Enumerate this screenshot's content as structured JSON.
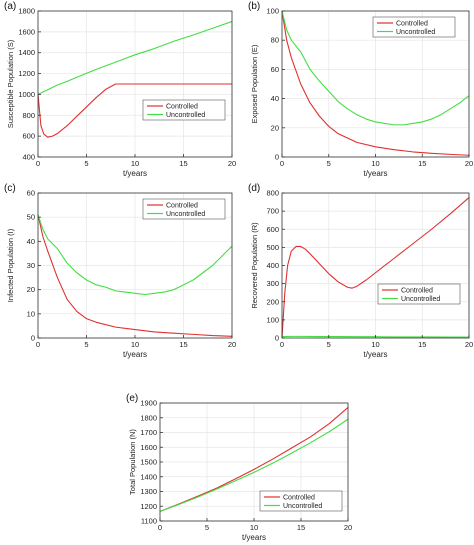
{
  "colors": {
    "controlled": "#e03030",
    "uncontrolled": "#44dd44",
    "axis": "#333333",
    "grid": "#e6e6e6"
  },
  "chart_data": [
    {
      "panel_label": "(a)",
      "type": "line",
      "xlabel": "t/years",
      "ylabel": "Susceptible Population (S)",
      "xlim": [
        0,
        20
      ],
      "ylim": [
        400,
        1800
      ],
      "xticks": [
        0,
        5,
        10,
        15,
        20
      ],
      "yticks": [
        400,
        600,
        800,
        1000,
        1200,
        1400,
        1600,
        1800
      ],
      "grid": true,
      "legend": "bottom-center",
      "series": [
        {
          "name": "Controlled",
          "color_key": "controlled",
          "x": [
            0,
            0.3,
            0.6,
            1,
            1.5,
            2,
            3,
            4,
            5,
            6,
            7,
            8,
            9,
            10,
            12,
            14,
            16,
            18,
            20
          ],
          "y": [
            1000,
            700,
            620,
            590,
            600,
            625,
            700,
            790,
            880,
            970,
            1050,
            1100,
            1100,
            1100,
            1100,
            1100,
            1100,
            1100,
            1100
          ]
        },
        {
          "name": "Uncontrolled",
          "color_key": "uncontrolled",
          "x": [
            0,
            1,
            2,
            3,
            4,
            6,
            8,
            10,
            12,
            14,
            16,
            18,
            20
          ],
          "y": [
            1000,
            1045,
            1090,
            1125,
            1165,
            1240,
            1310,
            1380,
            1440,
            1510,
            1570,
            1635,
            1700
          ]
        }
      ]
    },
    {
      "panel_label": "(b)",
      "type": "line",
      "xlabel": "t/years",
      "ylabel": "Exposed Population (E)",
      "xlim": [
        0,
        20
      ],
      "ylim": [
        0,
        100
      ],
      "xticks": [
        0,
        5,
        10,
        15,
        20
      ],
      "yticks": [
        0,
        20,
        40,
        60,
        80,
        100
      ],
      "grid": true,
      "legend": "top-right",
      "series": [
        {
          "name": "Controlled",
          "color_key": "controlled",
          "x": [
            0,
            0.5,
            1,
            2,
            3,
            4,
            5,
            6,
            8,
            10,
            12,
            14,
            16,
            18,
            20
          ],
          "y": [
            100,
            80,
            68,
            50,
            37,
            28,
            21,
            16,
            10,
            7,
            5,
            3.5,
            2.5,
            1.8,
            1.2
          ]
        },
        {
          "name": "Uncontrolled",
          "color_key": "uncontrolled",
          "x": [
            0,
            0.5,
            1,
            2,
            3,
            4,
            5,
            6,
            7,
            8,
            9,
            10,
            11,
            12,
            13,
            14,
            15,
            16,
            17,
            18,
            19,
            20
          ],
          "y": [
            100,
            87,
            80,
            72,
            60,
            52,
            45,
            38,
            33,
            29,
            26,
            24,
            23,
            22,
            22,
            23,
            24,
            26,
            29,
            33,
            37,
            42
          ]
        }
      ]
    },
    {
      "panel_label": "(c)",
      "type": "line",
      "xlabel": "t/years",
      "ylabel": "Infected Population (I)",
      "xlim": [
        0,
        20
      ],
      "ylim": [
        0,
        60
      ],
      "xticks": [
        0,
        5,
        10,
        15,
        20
      ],
      "yticks": [
        0,
        10,
        20,
        30,
        40,
        50,
        60
      ],
      "grid": true,
      "legend": "top-right",
      "series": [
        {
          "name": "Controlled",
          "color_key": "controlled",
          "x": [
            0,
            0.5,
            1,
            2,
            3,
            4,
            5,
            6,
            8,
            10,
            12,
            14,
            16,
            18,
            20
          ],
          "y": [
            51,
            42,
            36,
            25,
            16,
            11,
            8,
            6.5,
            4.5,
            3.5,
            2.5,
            2,
            1.5,
            1,
            0.7
          ]
        },
        {
          "name": "Uncontrolled",
          "color_key": "uncontrolled",
          "x": [
            0,
            0.5,
            1,
            2,
            3,
            4,
            5,
            6,
            7,
            8,
            9,
            10,
            11,
            12,
            13,
            14,
            15,
            16,
            17,
            18,
            19,
            20
          ],
          "y": [
            51,
            45,
            41,
            37,
            31,
            27,
            24,
            22,
            21,
            19.5,
            19,
            18.5,
            18,
            18.5,
            19,
            20,
            22,
            24,
            27,
            30,
            34,
            38
          ]
        }
      ]
    },
    {
      "panel_label": "(d)",
      "type": "line",
      "xlabel": "t/years",
      "ylabel": "Recovered Population (R)",
      "xlim": [
        0,
        20
      ],
      "ylim": [
        0,
        800
      ],
      "xticks": [
        0,
        5,
        10,
        15,
        20
      ],
      "yticks": [
        0,
        100,
        200,
        300,
        400,
        500,
        600,
        700,
        800
      ],
      "grid": true,
      "legend": "bottom-right",
      "series": [
        {
          "name": "Controlled",
          "color_key": "controlled",
          "x": [
            0,
            0.3,
            0.6,
            1,
            1.5,
            2,
            2.5,
            3,
            4,
            5,
            6,
            7,
            7.5,
            8,
            9,
            10,
            12,
            14,
            16,
            18,
            20
          ],
          "y": [
            0,
            250,
            400,
            480,
            505,
            505,
            490,
            465,
            410,
            355,
            310,
            280,
            275,
            285,
            320,
            360,
            440,
            520,
            600,
            685,
            775
          ]
        },
        {
          "name": "Uncontrolled",
          "color_key": "uncontrolled",
          "x": [
            0,
            1,
            2,
            4,
            6,
            8,
            10,
            12,
            14,
            16,
            18,
            20
          ],
          "y": [
            8,
            9,
            9,
            8,
            8,
            7,
            7,
            6,
            6,
            6,
            5,
            5
          ]
        }
      ]
    },
    {
      "panel_label": "(e)",
      "type": "line",
      "xlabel": "t/years",
      "ylabel": "Total Population (N)",
      "xlim": [
        0,
        20
      ],
      "ylim": [
        1100,
        1900
      ],
      "xticks": [
        0,
        5,
        10,
        15,
        20
      ],
      "yticks": [
        1100,
        1200,
        1300,
        1400,
        1500,
        1600,
        1700,
        1800,
        1900
      ],
      "grid": true,
      "legend": "bottom-right",
      "series": [
        {
          "name": "Controlled",
          "color_key": "controlled",
          "x": [
            0,
            2,
            4,
            6,
            8,
            10,
            12,
            14,
            16,
            18,
            20
          ],
          "y": [
            1165,
            1215,
            1268,
            1322,
            1385,
            1450,
            1520,
            1595,
            1670,
            1760,
            1870
          ]
        },
        {
          "name": "Uncontrolled",
          "color_key": "uncontrolled",
          "x": [
            0,
            2,
            4,
            6,
            8,
            10,
            12,
            14,
            16,
            18,
            20
          ],
          "y": [
            1165,
            1212,
            1262,
            1315,
            1372,
            1430,
            1492,
            1560,
            1630,
            1705,
            1790
          ]
        }
      ]
    }
  ]
}
